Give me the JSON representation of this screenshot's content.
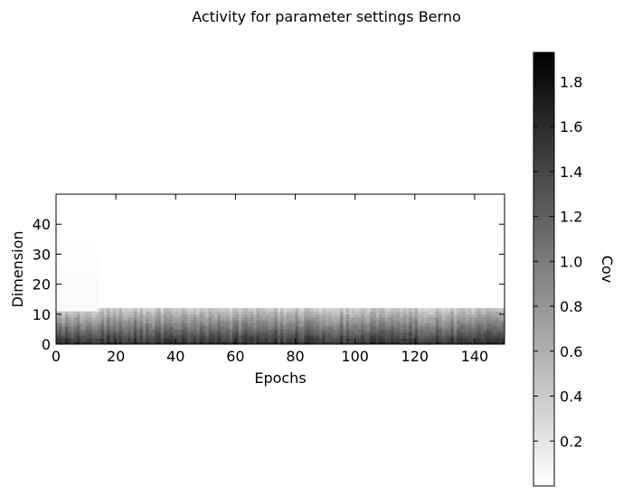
{
  "chart_data": {
    "type": "heatmap",
    "title": "Activity for parameter settings Berno",
    "xlabel": "Epochs",
    "ylabel": "Dimension",
    "xlim": [
      0,
      150
    ],
    "ylim": [
      0,
      50
    ],
    "x_ticks": [
      "0",
      "20",
      "40",
      "60",
      "80",
      "100",
      "120",
      "140"
    ],
    "y_ticks": [
      "0",
      "10",
      "20",
      "30",
      "40"
    ],
    "colorbar": {
      "label": "Cov",
      "range": [
        0,
        1.93
      ],
      "ticks": [
        "0.2",
        "0.4",
        "0.6",
        "0.8",
        "1.0",
        "1.2",
        "1.4",
        "1.6",
        "1.8"
      ],
      "colormap": "gray_r"
    },
    "profile": {
      "columns": 150,
      "rows": 50,
      "active_band_top": 11,
      "early_active_band_top": 10,
      "early_epochs": 14,
      "early_faint_top": 35,
      "early_faint_value": 0.05,
      "bottom_value": 1.55,
      "band_top_value": 0.45
    }
  }
}
